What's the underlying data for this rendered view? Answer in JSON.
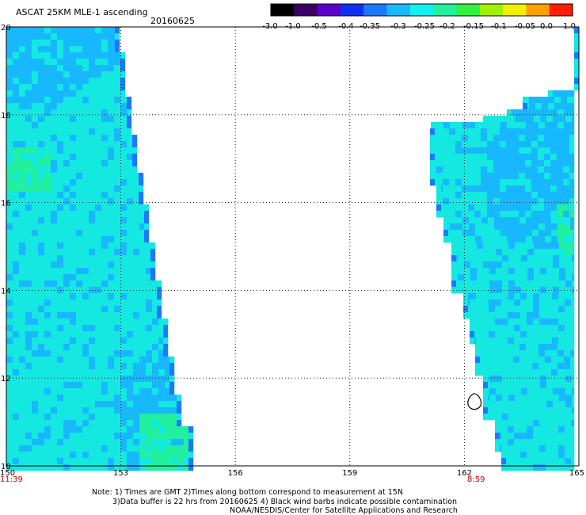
{
  "header": {
    "title": "ASCAT 25KM MLE-1 ascending",
    "date": "20160625"
  },
  "colorbar": {
    "labels": [
      "-3.0",
      "-1.0",
      "-0.5",
      "-0.4",
      "-0.35",
      "-0.3",
      "-0.25",
      "-0.2",
      "-0.15",
      "-0.1",
      "-0.05",
      "0.0",
      "1.0"
    ],
    "colors": [
      "#000000",
      "#3a0066",
      "#5a00c8",
      "#1030f0",
      "#1e78ff",
      "#18b8ff",
      "#10f0f0",
      "#20f0a0",
      "#30f040",
      "#a0f000",
      "#f0f000",
      "#ffa000",
      "#ff2000"
    ]
  },
  "map": {
    "lon_range": [
      150,
      165
    ],
    "lat_range": [
      10,
      20
    ],
    "x_ticks": [
      "150",
      "153",
      "156",
      "159",
      "162",
      "165"
    ],
    "y_ticks": [
      "20",
      "18",
      "16",
      "14",
      "12",
      "10"
    ],
    "time_labels": {
      "left": "11:39",
      "right": "8:59"
    },
    "time_color": "#d00000",
    "swath_colors": {
      "base": "#14e8e0",
      "dark": "#18b8ff",
      "edge": "#1e78ff",
      "green": "#20f0a0"
    }
  },
  "notes": {
    "line1": "Note: 1) Times are GMT 2)Times along bottom correspond to measurement at 15N",
    "line2": "3)Data buffer is 22 hrs from 20160625 4) Black wind barbs indicate possible contamination",
    "line3": "NOAA/NESDIS/Center for Satellite Applications and Research"
  }
}
